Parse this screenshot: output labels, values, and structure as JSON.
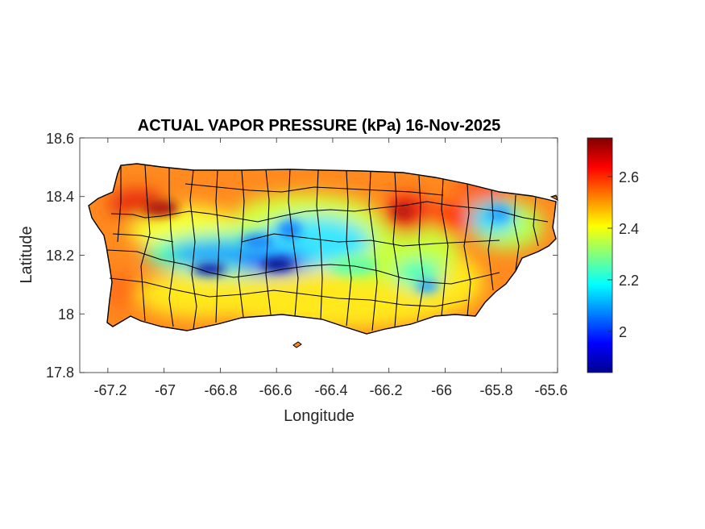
{
  "figure": {
    "title": "ACTUAL VAPOR PRESSURE (kPa) 16-Nov-2025",
    "xlabel": "Longitude",
    "ylabel": "Latitude"
  },
  "map": {
    "x_ticks": [
      "-67.2",
      "-67",
      "-66.8",
      "-66.6",
      "-66.4",
      "-66.2",
      "-66",
      "-65.8",
      "-65.6"
    ],
    "x_tick_values": [
      -67.2,
      -67.0,
      -66.8,
      -66.6,
      -66.4,
      -66.2,
      -66.0,
      -65.8,
      -65.6
    ],
    "y_ticks": [
      "18.6",
      "18.4",
      "18.2",
      "18",
      "17.8"
    ],
    "y_tick_values": [
      18.6,
      18.4,
      18.2,
      18.0,
      17.8
    ],
    "xlim": [
      -67.3,
      -65.6
    ],
    "ylim": [
      17.8,
      18.6
    ],
    "colormap": "jet"
  },
  "colorbar": {
    "ticks": [
      "2.6",
      "2.4",
      "2.2",
      "2"
    ],
    "tick_values": [
      2.6,
      2.4,
      2.2,
      2.0
    ],
    "range": [
      1.84,
      2.75
    ]
  },
  "colors": {
    "jet_low": "#00008f",
    "jet_mid": "#80ff80",
    "jet_high": "#800000",
    "dominant_fill": "#ff8a1f"
  }
}
